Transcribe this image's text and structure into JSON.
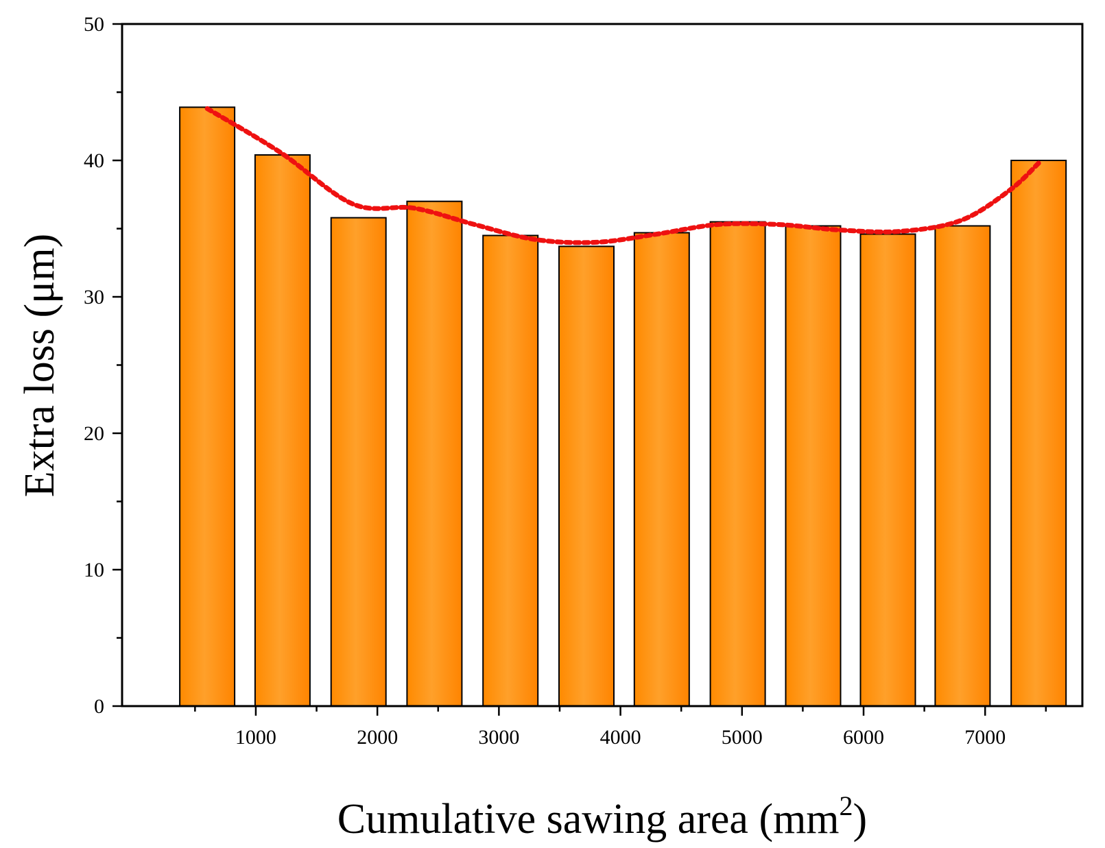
{
  "chart_data": {
    "type": "bar",
    "title": "",
    "xlabel": "Cumulative sawing area (mm",
    "xlabel_superscript": "2",
    "xlabel_suffix": ")",
    "ylabel": "Extra loss (μm)",
    "x_values": [
      600,
      1220,
      1845,
      2470,
      3095,
      3720,
      4340,
      4965,
      5585,
      6200,
      6815,
      7440
    ],
    "values": [
      43.9,
      40.4,
      35.8,
      37.0,
      34.5,
      33.7,
      34.7,
      35.5,
      35.2,
      34.6,
      35.2,
      40.0
    ],
    "trend_line": {
      "style": "dotted",
      "color": "#ee1111",
      "x": [
        600,
        1200,
        1800,
        2300,
        2800,
        3300,
        3800,
        4300,
        4800,
        5300,
        5800,
        6300,
        6800,
        7200,
        7440
      ],
      "y": [
        43.8,
        40.6,
        36.8,
        36.5,
        35.3,
        34.2,
        34.0,
        34.6,
        35.3,
        35.3,
        34.9,
        34.8,
        35.6,
        37.8,
        39.8
      ]
    },
    "xlim": [
      -100,
      7800
    ],
    "ylim": [
      0,
      50
    ],
    "x_ticks": [
      "1000",
      "2000",
      "3000",
      "4000",
      "5000",
      "6000",
      "7000"
    ],
    "y_ticks": [
      "0",
      "10",
      "20",
      "30",
      "40",
      "50"
    ],
    "bar_color": "#ff8c00",
    "grid": false
  }
}
